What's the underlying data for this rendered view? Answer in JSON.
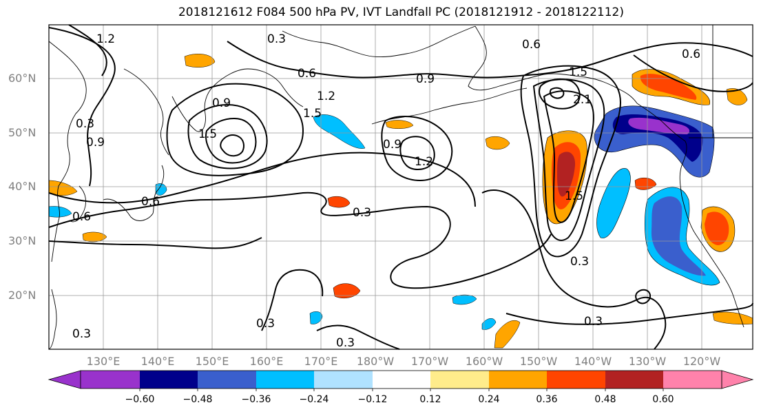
{
  "title": "2018121612 F084 500 hPa PV, IVT Landfall PC (2018121912 - 2018122112)",
  "lat_labels": [
    "60°N",
    "50°N",
    "40°N",
    "30°N",
    "20°N"
  ],
  "lon_labels": [
    "130°E",
    "140°E",
    "150°E",
    "160°E",
    "170°E",
    "180°W",
    "170°W",
    "160°W",
    "150°W",
    "140°W",
    "130°W",
    "120°W"
  ],
  "contour_labels": [
    "1.2",
    "0.3",
    "0.6",
    "0.9",
    "0.6",
    "1.5",
    "1.5",
    "0.9",
    "0.3",
    "0.9",
    "1.2",
    "0.9",
    "1.2",
    "0.6",
    "0.3",
    "0.3",
    "0.3",
    "0.3",
    "0.6",
    "0.3",
    "1.5",
    "2.1",
    "0.6",
    "1.5",
    "0.3"
  ],
  "colorbar": {
    "ticks": [
      "−0.60",
      "−0.48",
      "−0.36",
      "−0.24",
      "−0.12",
      "0.12",
      "0.24",
      "0.36",
      "0.48",
      "0.60"
    ],
    "colors": [
      "#9932cc",
      "#00008b",
      "#3a5fcd",
      "#00bfff",
      "#b0e2ff",
      "#ffffff",
      "#ffec8b",
      "#ffa500",
      "#ff4500",
      "#b22222",
      "#ff82ab"
    ]
  }
}
